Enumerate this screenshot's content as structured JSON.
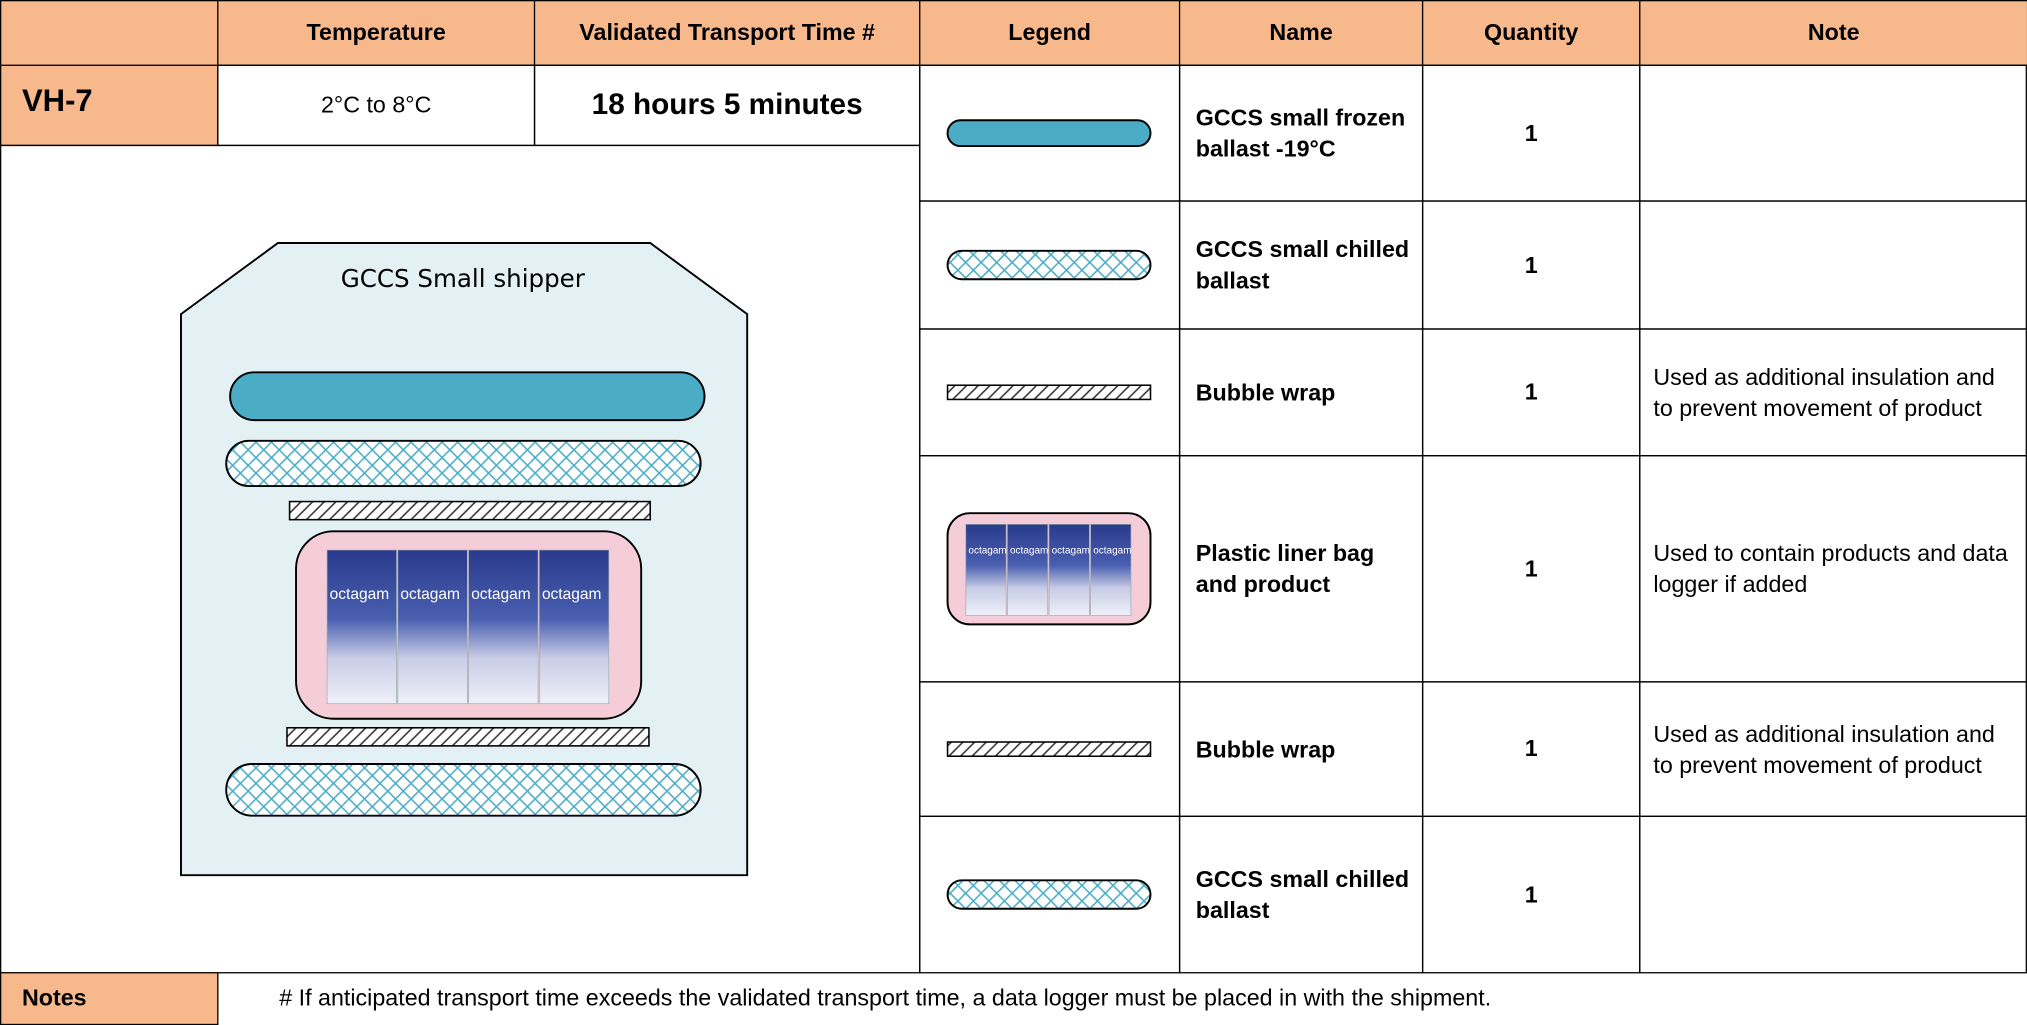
{
  "id": "VH-7",
  "columns": [
    "Temperature",
    "Validated Transport Time #",
    "Legend",
    "Name",
    "Quantity",
    "Note"
  ],
  "temperature": "2°C to 8°C",
  "transport_time": "18 hours 5 minutes",
  "shipper_label": "GCCS Small shipper",
  "product_label": "octagam",
  "rows": [
    {
      "name": "GCCS small frozen ballast -19°C",
      "quantity": 1
    },
    {
      "name": "GCCS small chilled ballast",
      "quantity": 1
    },
    {
      "name": "Bubble wrap",
      "quantity": 1,
      "note": "Used as additional insulation and to prevent movement of product"
    },
    {
      "name": "Plastic liner bag and product",
      "quantity": 1,
      "note": "Used to contain products and data logger if added"
    },
    {
      "name": "Bubble wrap",
      "quantity": 1,
      "note": "Used as additional insulation and to prevent movement of product"
    },
    {
      "name": "GCCS small chilled ballast",
      "quantity": 1
    }
  ],
  "notes": {
    "label": "Notes",
    "text": "# If anticipated transport time exceeds the validated transport time, a data logger must be placed in with the shipment."
  }
}
